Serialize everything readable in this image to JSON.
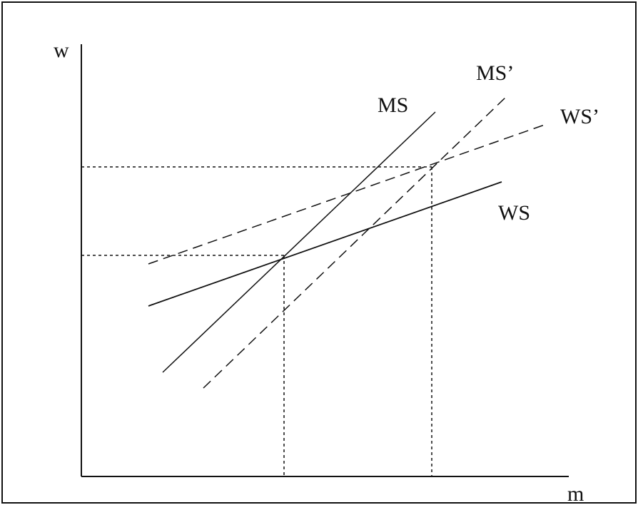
{
  "axes": {
    "y_label": "w",
    "x_label": "m"
  },
  "curves": [
    {
      "id": "MS",
      "label": "MS",
      "style": "solid"
    },
    {
      "id": "MS_prime",
      "label": "MS’",
      "style": "dashed"
    },
    {
      "id": "WS",
      "label": "WS",
      "style": "solid"
    },
    {
      "id": "WS_prime",
      "label": "WS’",
      "style": "dashed"
    }
  ],
  "colors": {
    "ink": "#111111",
    "background": "#ffffff"
  }
}
